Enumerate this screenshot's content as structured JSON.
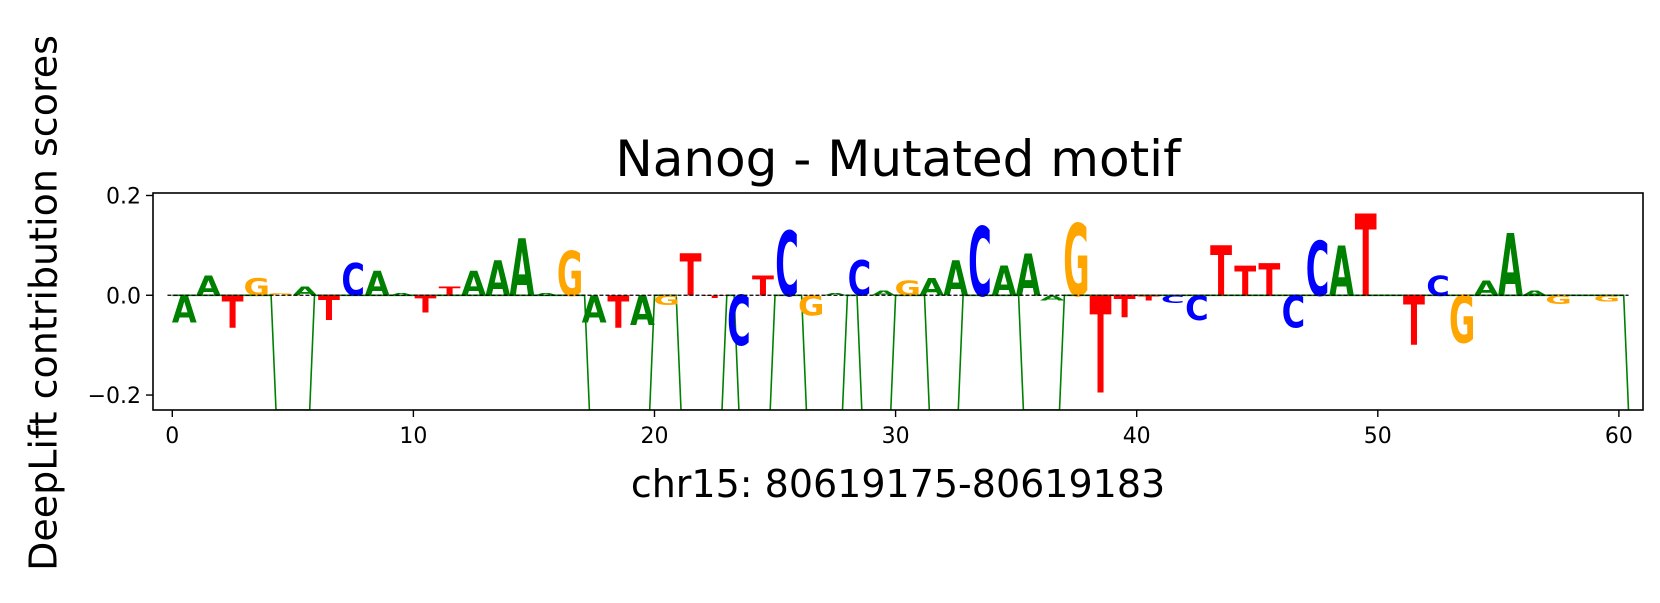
{
  "chart_data": {
    "type": "sequence-logo",
    "title": "Nanog - Mutated motif",
    "xlabel": "chr15: 80619175-80619183",
    "ylabel": "DeepLift contribution scores",
    "xlim": [
      -0.8,
      61
    ],
    "ylim": [
      -0.23,
      0.205
    ],
    "xticks": [
      0,
      10,
      20,
      30,
      40,
      50,
      60
    ],
    "xtick_labels": [
      "0",
      "10",
      "20",
      "30",
      "40",
      "50",
      "60"
    ],
    "yticks": [
      0.2,
      0.0,
      -0.2
    ],
    "ytick_labels": [
      "0.2",
      "0.0",
      "−0.2"
    ],
    "grid": false,
    "letter_colors": {
      "A": "#008000",
      "C": "#0000ff",
      "G": "#ffa500",
      "T": "#ff0000"
    },
    "baseline_color": "#000000",
    "trace_color": "#008000",
    "letters": [
      {
        "pos": 0.5,
        "base": "A",
        "score": -0.055
      },
      {
        "pos": 1.5,
        "base": "A",
        "score": 0.04
      },
      {
        "pos": 2.5,
        "base": "T",
        "score": -0.065
      },
      {
        "pos": 3.5,
        "base": "G",
        "score": 0.035
      },
      {
        "pos": 4.5,
        "base": "G",
        "score": 0.005
      },
      {
        "pos": 5.5,
        "base": "A",
        "score": 0.018
      },
      {
        "pos": 6.5,
        "base": "T",
        "score": -0.05
      },
      {
        "pos": 7.5,
        "base": "C",
        "score": 0.065
      },
      {
        "pos": 8.5,
        "base": "A",
        "score": 0.05
      },
      {
        "pos": 9.5,
        "base": "A",
        "score": 0.005
      },
      {
        "pos": 10.5,
        "base": "T",
        "score": -0.035
      },
      {
        "pos": 11.5,
        "base": "T",
        "score": 0.018
      },
      {
        "pos": 12.5,
        "base": "A",
        "score": 0.05
      },
      {
        "pos": 13.5,
        "base": "A",
        "score": 0.07
      },
      {
        "pos": 14.5,
        "base": "A",
        "score": 0.115
      },
      {
        "pos": 15.5,
        "base": "A",
        "score": 0.005
      },
      {
        "pos": 16.5,
        "base": "G",
        "score": 0.09
      },
      {
        "pos": 17.5,
        "base": "A",
        "score": -0.055
      },
      {
        "pos": 18.5,
        "base": "T",
        "score": -0.065
      },
      {
        "pos": 19.5,
        "base": "A",
        "score": -0.06
      },
      {
        "pos": 20.5,
        "base": "G",
        "score": -0.02
      },
      {
        "pos": 21.5,
        "base": "T",
        "score": 0.085
      },
      {
        "pos": 22.5,
        "base": "T",
        "score": -0.005
      },
      {
        "pos": 23.5,
        "base": "C",
        "score": -0.1
      },
      {
        "pos": 24.5,
        "base": "T",
        "score": 0.04
      },
      {
        "pos": 25.5,
        "base": "C",
        "score": 0.13
      },
      {
        "pos": 26.5,
        "base": "G",
        "score": -0.04
      },
      {
        "pos": 27.5,
        "base": "A",
        "score": 0.005
      },
      {
        "pos": 28.5,
        "base": "C",
        "score": 0.07
      },
      {
        "pos": 29.5,
        "base": "A",
        "score": 0.01
      },
      {
        "pos": 30.5,
        "base": "G",
        "score": 0.03
      },
      {
        "pos": 31.5,
        "base": "A",
        "score": 0.035
      },
      {
        "pos": 32.5,
        "base": "A",
        "score": 0.07
      },
      {
        "pos": 33.5,
        "base": "C",
        "score": 0.14
      },
      {
        "pos": 34.5,
        "base": "A",
        "score": 0.06
      },
      {
        "pos": 35.5,
        "base": "A",
        "score": 0.085
      },
      {
        "pos": 36.5,
        "base": "A",
        "score": -0.01
      },
      {
        "pos": 37.5,
        "base": "G",
        "score": 0.145
      },
      {
        "pos": 38.5,
        "base": "T",
        "score": -0.195
      },
      {
        "pos": 39.5,
        "base": "T",
        "score": -0.045
      },
      {
        "pos": 40.5,
        "base": "T",
        "score": -0.01
      },
      {
        "pos": 41.5,
        "base": "C",
        "score": -0.015
      },
      {
        "pos": 42.5,
        "base": "C",
        "score": -0.05
      },
      {
        "pos": 43.5,
        "base": "T",
        "score": 0.1
      },
      {
        "pos": 44.5,
        "base": "T",
        "score": 0.06
      },
      {
        "pos": 45.5,
        "base": "T",
        "score": 0.065
      },
      {
        "pos": 46.5,
        "base": "C",
        "score": -0.065
      },
      {
        "pos": 47.5,
        "base": "C",
        "score": 0.11
      },
      {
        "pos": 48.5,
        "base": "A",
        "score": 0.1
      },
      {
        "pos": 49.5,
        "base": "T",
        "score": 0.165
      },
      {
        "pos": 51.5,
        "base": "T",
        "score": -0.1
      },
      {
        "pos": 52.5,
        "base": "C",
        "score": 0.04
      },
      {
        "pos": 53.5,
        "base": "G",
        "score": -0.095
      },
      {
        "pos": 54.5,
        "base": "A",
        "score": 0.03
      },
      {
        "pos": 55.5,
        "base": "A",
        "score": 0.125
      },
      {
        "pos": 56.5,
        "base": "A",
        "score": 0.01
      },
      {
        "pos": 57.5,
        "base": "G",
        "score": -0.018
      },
      {
        "pos": 59.5,
        "base": "G",
        "score": -0.012
      }
    ],
    "trace": {
      "x": [
        0,
        4.1,
        4.3,
        5.7,
        5.9,
        17.1,
        17.3,
        19.8,
        20.0,
        20.9,
        21.1,
        22.8,
        23.0,
        23.3,
        23.5,
        24.8,
        25.0,
        26.1,
        26.3,
        27.8,
        28.0,
        28.4,
        28.6,
        29.8,
        30.0,
        31.2,
        31.4,
        32.6,
        32.8,
        35.1,
        35.3,
        36.8,
        37.0,
        60.2,
        60.4
      ],
      "y": [
        0,
        0,
        -0.23,
        -0.23,
        0,
        0,
        -0.23,
        -0.23,
        0,
        0,
        -0.23,
        -0.23,
        0,
        0,
        -0.23,
        -0.23,
        0,
        0,
        -0.23,
        -0.23,
        0,
        0,
        -0.23,
        -0.23,
        0,
        0,
        -0.23,
        -0.23,
        0,
        0,
        -0.23,
        -0.23,
        0,
        0,
        -0.23
      ]
    }
  }
}
